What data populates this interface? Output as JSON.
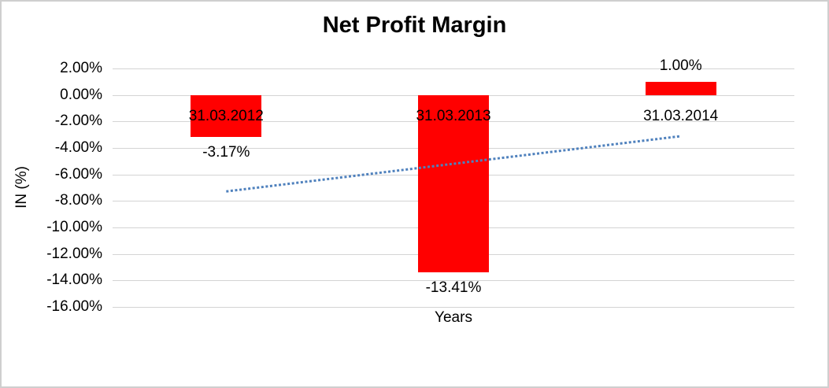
{
  "colors": {
    "bar": "#FF0000",
    "trendline": "#4F81BD",
    "gridline": "#D4D4D4",
    "text": "#000000",
    "background": "#FFFFFF",
    "border": "#CFCFCF"
  },
  "chart_data": {
    "type": "bar",
    "title": "Net Profit Margin",
    "xlabel": "Years",
    "ylabel": "IN (%)",
    "categories": [
      "31.03.2012",
      "31.03.2013",
      "31.03.2014"
    ],
    "values": [
      -3.17,
      -13.41,
      1.0
    ],
    "value_labels": [
      "-3.17%",
      "-13.41%",
      "1.00%"
    ],
    "ylim": [
      -16,
      2
    ],
    "ytick_step": 2,
    "ytick_labels": [
      "2.00%",
      "0.00%",
      "-2.00%",
      "-4.00%",
      "-6.00%",
      "-8.00%",
      "-10.00%",
      "-12.00%",
      "-14.00%",
      "-16.00%"
    ],
    "grid": true,
    "legend": "none",
    "bar_color": "#FF0000",
    "trendline": {
      "type": "linear",
      "line_style": "dotted",
      "color": "#4F81BD",
      "start_value": -7.28,
      "end_value": -3.11
    }
  }
}
